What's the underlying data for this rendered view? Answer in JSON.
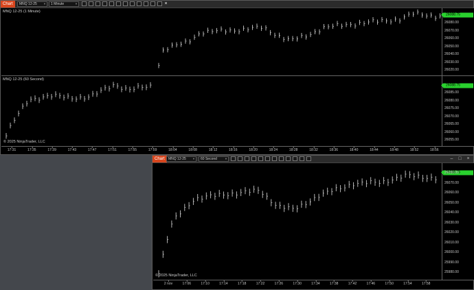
{
  "window1": {
    "tab_label": "Chart",
    "instrument": "MNQ 12-25",
    "interval": "1 Minute",
    "top_panel": {
      "label": "MNQ 12-25 (1 Minute)",
      "price_labels": [
        "26080.00",
        "26070.00",
        "26060.00",
        "26050.00",
        "26040.00",
        "26030.00",
        "26020.00"
      ],
      "current_price": "26088.75"
    },
    "bottom_panel": {
      "label": "MNQ 12-25 (60 Second)",
      "price_labels": [
        "26085.00",
        "26080.00",
        "26075.00",
        "26070.00",
        "26065.00",
        "26060.00",
        "26055.00"
      ],
      "current_price": "26088.75"
    },
    "copyright": "© 2025 NinjaTrader, LLC",
    "time_labels": [
      "17:31",
      "17:35",
      "17:39",
      "17:43",
      "17:47",
      "17:51",
      "17:55",
      "17:59",
      "18:04",
      "18:08",
      "18:12",
      "18:16",
      "18:20",
      "18:24",
      "18:28",
      "18:32",
      "18:36",
      "18:40",
      "18:44",
      "18:48",
      "18:52",
      "18:56"
    ]
  },
  "window2": {
    "tab_label": "Chart",
    "instrument": "MNQ 12-25",
    "interval": "60 Second",
    "panel": {
      "price_labels": [
        "26080.00",
        "26070.00",
        "26060.00",
        "26050.00",
        "26040.00",
        "26030.00",
        "26020.00",
        "26010.00",
        "26000.00",
        "25990.00",
        "25980.00"
      ],
      "current_price": "26088.75"
    },
    "copyright": "© 2025 NinjaTrader, LLC",
    "time_labels": [
      "2 nov",
      "17:06",
      "17:10",
      "17:14",
      "17:18",
      "17:22",
      "17:26",
      "17:30",
      "17:34",
      "17:38",
      "17:42",
      "17:46",
      "17:50",
      "17:54",
      "17:58"
    ]
  },
  "colors": {
    "background": "#44474c",
    "chart_bg": "#000000",
    "tab_accent": "#d8461e",
    "price_marker": "#29d12e",
    "bar_color": "#c8c8c8"
  },
  "icons": [
    "toolbar-tool-icon",
    "minimize-icon",
    "maximize-icon",
    "close-icon"
  ]
}
